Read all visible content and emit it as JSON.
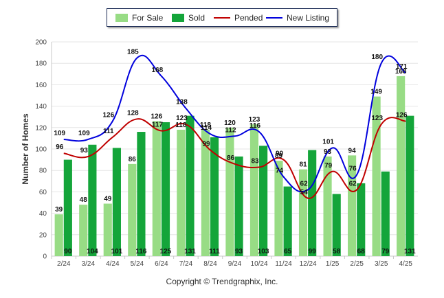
{
  "chart_data": {
    "type": "bar",
    "title": "",
    "ylabel": "Number of Homes",
    "xlabel": "",
    "ylim": [
      0,
      200
    ],
    "yticks": [
      0,
      20,
      40,
      60,
      80,
      100,
      120,
      140,
      160,
      180,
      200
    ],
    "categories": [
      "2/24",
      "3/24",
      "4/24",
      "5/24",
      "6/24",
      "7/24",
      "8/24",
      "9/24",
      "10/24",
      "11/24",
      "12/24",
      "1/25",
      "2/25",
      "3/25",
      "4/25"
    ],
    "series": [
      {
        "name": "For Sale",
        "kind": "bar",
        "color": "#98dc85",
        "values": [
          39,
          48,
          49,
          86,
          126,
          118,
          118,
          120,
          123,
          89,
          81,
          93,
          94,
          149,
          168
        ]
      },
      {
        "name": "Sold",
        "kind": "bar",
        "color": "#14a53a",
        "values": [
          90,
          104,
          101,
          116,
          125,
          131,
          111,
          93,
          103,
          65,
          99,
          58,
          68,
          79,
          131
        ]
      },
      {
        "name": "Pended",
        "kind": "line",
        "color": "#c00000",
        "values": [
          96,
          93,
          111,
          128,
          117,
          123,
          99,
          86,
          83,
          90,
          54,
          79,
          62,
          123,
          126
        ]
      },
      {
        "name": "New Listing",
        "kind": "line",
        "color": "#0000dd",
        "values": [
          109,
          109,
          126,
          185,
          168,
          138,
          114,
          112,
          116,
          74,
          62,
          101,
          76,
          180,
          171
        ]
      }
    ],
    "legend_position": "top-center",
    "grid": true
  },
  "copyright": "Copyright © Trendgraphix, Inc."
}
